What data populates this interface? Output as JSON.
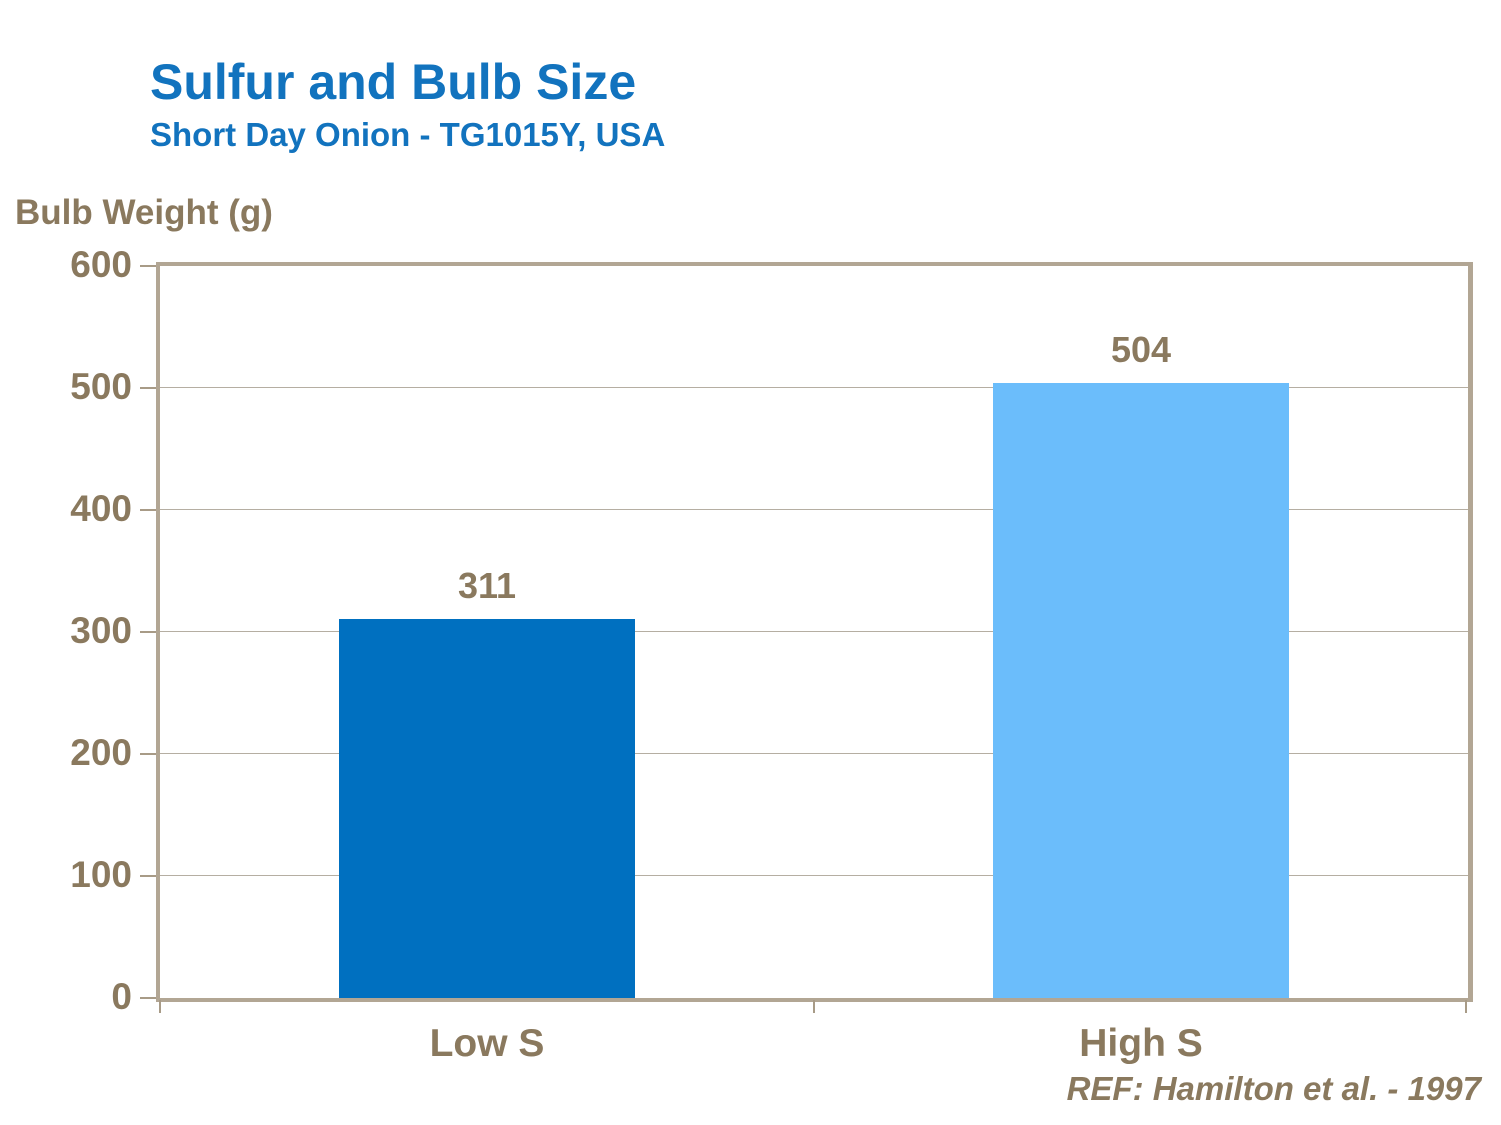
{
  "header": {
    "title": "Sulfur and Bulb Size",
    "subtitle": "Short Day Onion - TG1015Y, USA",
    "title_color": "#1273BE"
  },
  "chart_data": {
    "type": "bar",
    "title": "Sulfur and Bulb Size",
    "subtitle": "Short Day Onion - TG1015Y, USA",
    "ylabel": "Bulb Weight (g)",
    "xlabel": "",
    "categories": [
      "Low S",
      "High S"
    ],
    "values": [
      311,
      504
    ],
    "data_labels": [
      "311",
      "504"
    ],
    "bar_colors": [
      "#0070C0",
      "#6BBDFB"
    ],
    "ylim": [
      0,
      600
    ],
    "yticks": [
      0,
      100,
      200,
      300,
      400,
      500,
      600
    ],
    "grid": "horizontal",
    "legend": "none",
    "text_color": "#8A795E",
    "frame_color": "#B2A694"
  },
  "footer": {
    "reference": "REF: Hamilton et al. - 1997"
  }
}
